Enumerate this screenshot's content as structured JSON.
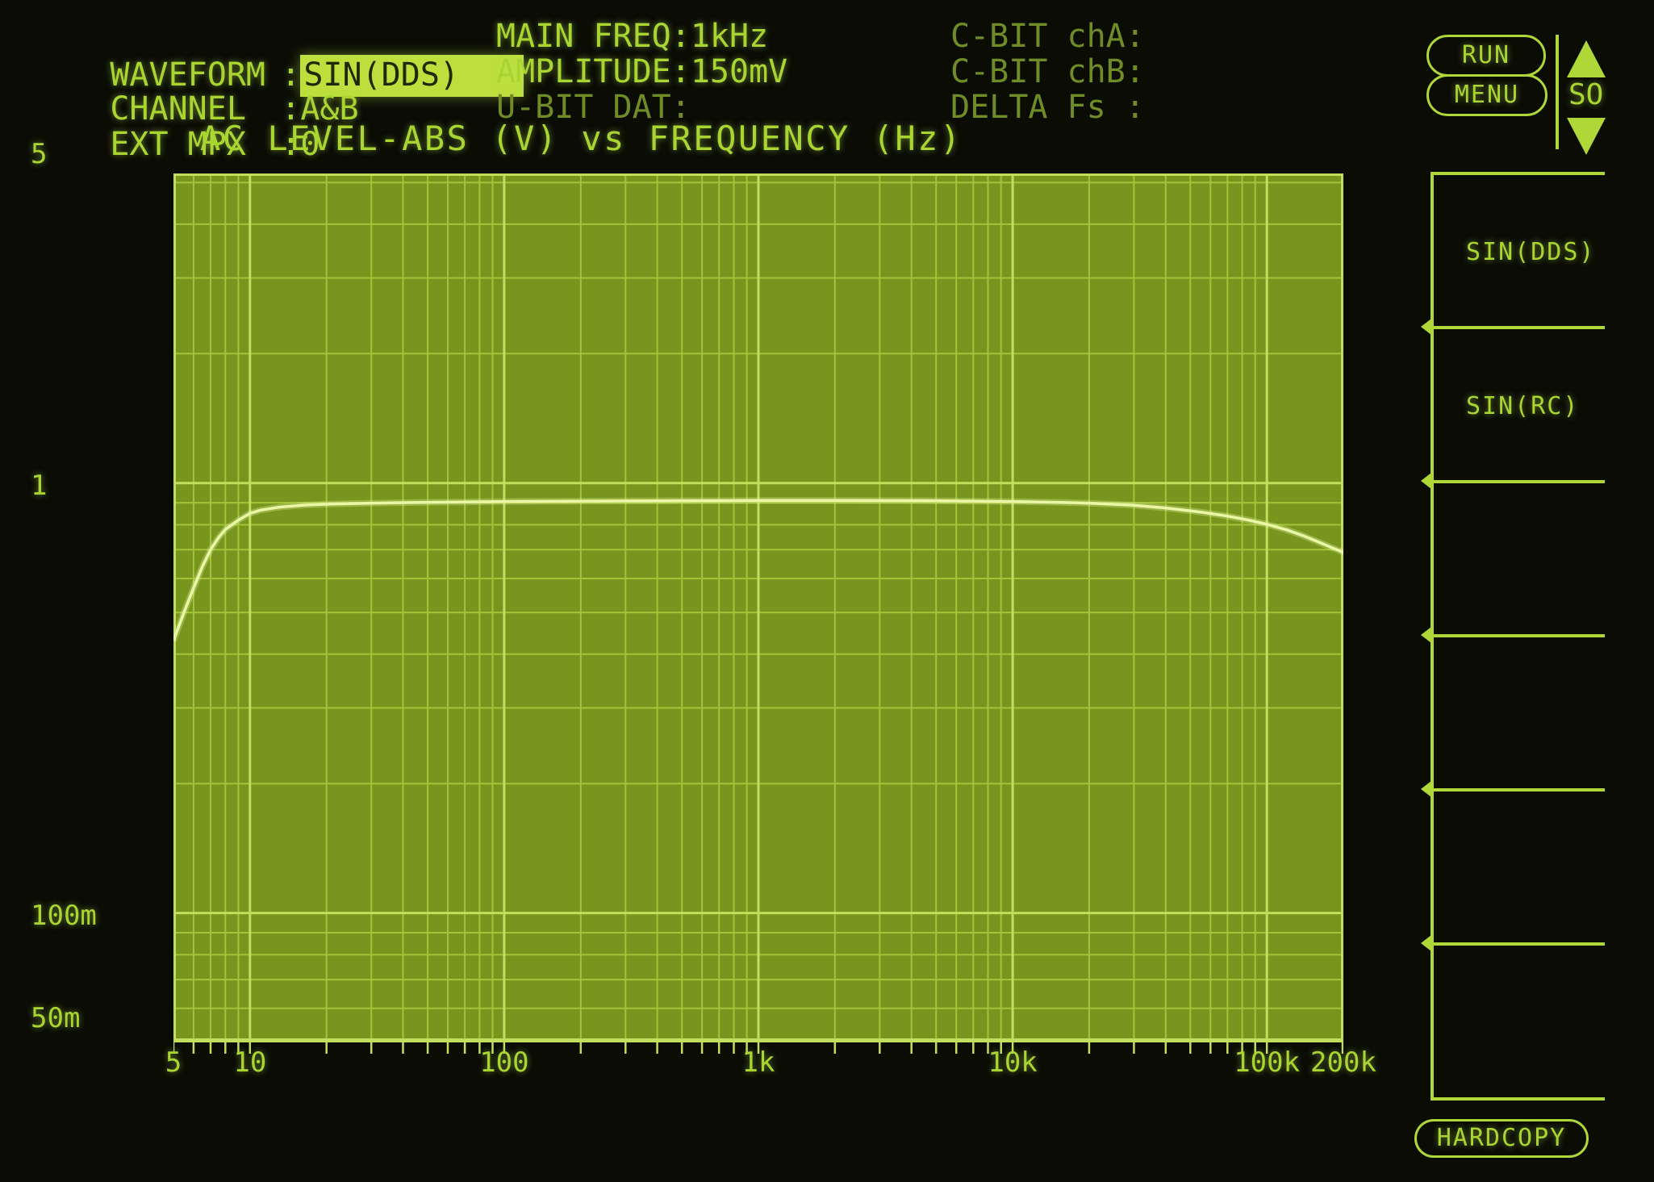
{
  "palette": {
    "bg": "#0b0d05",
    "tx": "#a9d531",
    "tx_dim": "#6f8c26",
    "hl_bg": "#bcdf3e",
    "hl_tx": "#1d2a06",
    "plot_bg": "#78961e",
    "grid_minor": "#a3c438",
    "grid_major": "#c2de5d",
    "curve": "#e9f7a6",
    "accent": "#aed737"
  },
  "header": {
    "left": {
      "rows": [
        {
          "label": "WAVEFORM",
          "sep": ":",
          "value": "SIN(DDS)"
        },
        {
          "label": "CHANNEL",
          "sep": ":",
          "value": "A&B"
        },
        {
          "label": "EXT MPX",
          "sep": ":",
          "value": "0"
        }
      ]
    },
    "mid": {
      "rows": [
        "MAIN FREQ:1kHz",
        "AMPLITUDE:150mV",
        "U-BIT DAT:"
      ]
    },
    "right": {
      "rows": [
        "C-BIT chA:",
        "C-BIT chB:",
        "DELTA Fs :"
      ]
    }
  },
  "controls": {
    "run": "RUN",
    "menu": "MENU",
    "so": "SO",
    "hardcopy": "HARDCOPY"
  },
  "softkeys": [
    "SIN(DDS)",
    "SIN(RC)",
    "",
    "",
    "",
    ""
  ],
  "chart_data": {
    "type": "line",
    "title": "AC LEVEL-ABS (V) vs FREQUENCY (Hz)",
    "xlabel": "FREQUENCY (Hz)",
    "ylabel": "AC LEVEL-ABS (V)",
    "x_scale": "log",
    "y_scale": "log",
    "xlim": [
      5,
      200000
    ],
    "ylim": [
      0.05,
      5.25
    ],
    "grid": true,
    "legend_position": "none",
    "x_ticks": [
      {
        "value": 5,
        "label": "5"
      },
      {
        "value": 10,
        "label": "10"
      },
      {
        "value": 100,
        "label": "100"
      },
      {
        "value": 1000,
        "label": "1k"
      },
      {
        "value": 10000,
        "label": "10k"
      },
      {
        "value": 100000,
        "label": "100k"
      },
      {
        "value": 200000,
        "label": "200k"
      }
    ],
    "y_ticks": [
      {
        "value": 5,
        "label": "5"
      },
      {
        "value": 1,
        "label": "1"
      },
      {
        "value": 0.1,
        "label": "100m"
      },
      {
        "value": 0.05,
        "label": "50m"
      }
    ],
    "series": [
      {
        "name": "AC LEVEL-ABS (V)",
        "points": [
          [
            5,
            0.43
          ],
          [
            5.5,
            0.5
          ],
          [
            6,
            0.57
          ],
          [
            6.5,
            0.64
          ],
          [
            7,
            0.7
          ],
          [
            7.5,
            0.745
          ],
          [
            8,
            0.78
          ],
          [
            9,
            0.82
          ],
          [
            10,
            0.85
          ],
          [
            11,
            0.865
          ],
          [
            13,
            0.879
          ],
          [
            16,
            0.888
          ],
          [
            20,
            0.893
          ],
          [
            30,
            0.898
          ],
          [
            50,
            0.902
          ],
          [
            100,
            0.906
          ],
          [
            200,
            0.908
          ],
          [
            500,
            0.91
          ],
          [
            1000,
            0.911
          ],
          [
            2000,
            0.911
          ],
          [
            5000,
            0.91
          ],
          [
            10000,
            0.906
          ],
          [
            15000,
            0.902
          ],
          [
            20000,
            0.898
          ],
          [
            30000,
            0.888
          ],
          [
            40000,
            0.875
          ],
          [
            55000,
            0.856
          ],
          [
            70000,
            0.838
          ],
          [
            85000,
            0.82
          ],
          [
            100000,
            0.802
          ],
          [
            120000,
            0.778
          ],
          [
            140000,
            0.753
          ],
          [
            160000,
            0.729
          ],
          [
            180000,
            0.708
          ],
          [
            200000,
            0.69
          ]
        ]
      }
    ]
  }
}
